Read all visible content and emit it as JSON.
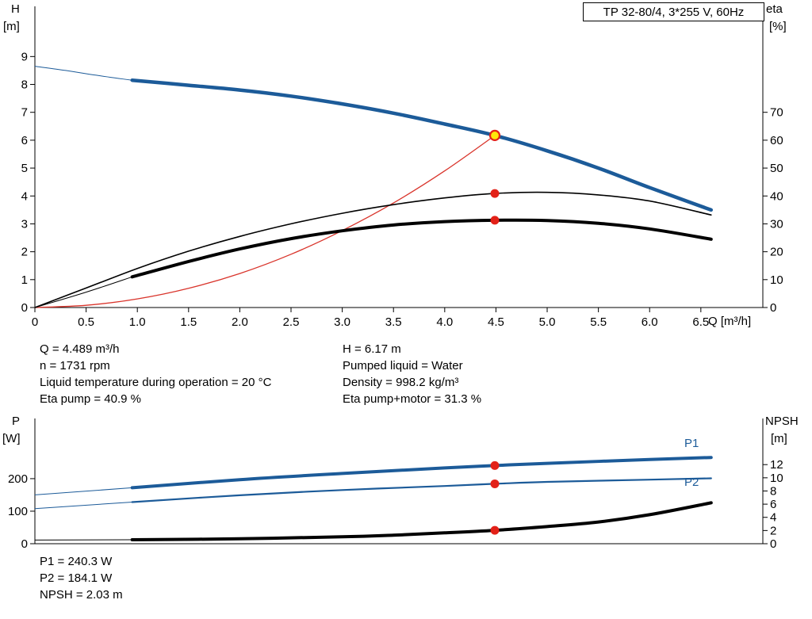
{
  "title_box": {
    "label": "TP 32-80/4, 3*255 V, 60Hz"
  },
  "colors": {
    "curve_blue": "#1c5b99",
    "curve_black": "#000000",
    "curve_red": "#d9342b",
    "marker_red": "#e32118",
    "marker_yellow": "#ffe60a",
    "axis_black": "#000000"
  },
  "info_block": {
    "left": [
      "Q = 4.489 m³/h",
      "n = 1731 rpm",
      "Liquid temperature during operation = 20 °C",
      "Eta pump = 40.9 %"
    ],
    "right": [
      "H = 6.17 m",
      "Pumped liquid = Water",
      "Density = 998.2 kg/m³",
      "Eta pump+motor = 31.3 %"
    ]
  },
  "results_block": [
    "P1 = 240.3 W",
    "P2 = 184.1 W",
    "NPSH = 2.03 m"
  ],
  "chart_data": [
    {
      "id": "head-chart",
      "type": "line",
      "title": "TP 32-80/4, 3*255 V, 60Hz",
      "x_axis": {
        "label": "Q [m³/h]",
        "ticks": [
          "0",
          "0.5",
          "1.0",
          "1.5",
          "2.0",
          "2.5",
          "3.0",
          "3.5",
          "4.0",
          "4.5",
          "5.0",
          "5.5",
          "6.0",
          "6.5"
        ],
        "tick_values": [
          0,
          0.5,
          1,
          1.5,
          2,
          2.5,
          3,
          3.5,
          4,
          4.5,
          5,
          5.5,
          6,
          6.5
        ],
        "range": [
          0,
          7.105
        ]
      },
      "y_left_axis": {
        "name": "H",
        "unit": "[m]",
        "ticks": [
          0,
          1,
          2,
          3,
          4,
          5,
          6,
          7,
          8,
          9
        ],
        "range": [
          0,
          10.8
        ]
      },
      "y_right_axis": {
        "name": "eta",
        "unit": "[%]",
        "ticks": [
          0,
          10,
          20,
          30,
          40,
          50,
          60,
          70
        ],
        "range": [
          0,
          108
        ]
      },
      "series": [
        {
          "name": "pump-head-curve",
          "axis": "left",
          "color": "blue",
          "width": 4.5,
          "x": [
            0.95,
            1.5,
            2.0,
            2.5,
            3.0,
            3.5,
            4.0,
            4.489,
            5.0,
            5.5,
            6.0,
            6.6
          ],
          "y": [
            8.15,
            7.97,
            7.8,
            7.58,
            7.3,
            6.97,
            6.58,
            6.17,
            5.62,
            5.0,
            4.3,
            3.5
          ],
          "ext_x": [
            0,
            0.3,
            0.6,
            0.95
          ],
          "ext_y": [
            8.65,
            8.5,
            8.33,
            8.15
          ]
        },
        {
          "name": "system-resulting-curve",
          "axis": "left",
          "color": "red",
          "width": 1.3,
          "x": [
            0,
            0.5,
            1.0,
            1.5,
            2.0,
            2.5,
            3.0,
            3.5,
            4.0,
            4.489
          ],
          "y": [
            0,
            0.08,
            0.31,
            0.69,
            1.22,
            1.91,
            2.76,
            3.75,
            4.9,
            6.17
          ]
        },
        {
          "name": "eta-pump-curve",
          "axis": "right",
          "color": "black",
          "width": 1.6,
          "x": [
            0,
            0.5,
            1.0,
            1.5,
            2.0,
            2.5,
            3.0,
            3.5,
            4.0,
            4.489,
            5.0,
            5.5,
            6.0,
            6.6
          ],
          "y": [
            0,
            7.0,
            14.0,
            20.2,
            25.5,
            30.0,
            33.8,
            36.9,
            39.3,
            40.9,
            41.3,
            40.4,
            38.2,
            33.2
          ]
        },
        {
          "name": "eta-pump-motor-curve",
          "axis": "right",
          "color": "black",
          "width": 4,
          "x": [
            0.95,
            1.5,
            2.0,
            2.5,
            3.0,
            3.5,
            4.0,
            4.489,
            5.0,
            5.5,
            6.0,
            6.6
          ],
          "y": [
            11.0,
            16.5,
            21.0,
            24.7,
            27.5,
            29.6,
            30.8,
            31.3,
            31.2,
            30.2,
            28.2,
            24.5
          ],
          "ext_x": [
            0,
            0.5,
            0.95
          ],
          "ext_y": [
            0,
            5.5,
            11.0
          ]
        }
      ],
      "markers": [
        {
          "name": "duty-point",
          "axis": "left",
          "x": 4.489,
          "y": 6.17,
          "style": "yellow"
        },
        {
          "name": "eta-pump-point",
          "axis": "right",
          "x": 4.489,
          "y": 40.9,
          "style": "red"
        },
        {
          "name": "eta-pump-motor-point",
          "axis": "right",
          "x": 4.489,
          "y": 31.3,
          "style": "red"
        }
      ]
    },
    {
      "id": "power-chart",
      "type": "line",
      "x_axis": {
        "label": "",
        "ticks": [],
        "tick_values": [],
        "range": [
          0,
          7.105
        ]
      },
      "y_left_axis": {
        "name": "P",
        "unit": "[W]",
        "ticks": [
          0,
          100,
          200
        ],
        "range": [
          0,
          385
        ]
      },
      "y_right_axis": {
        "name": "NPSH",
        "unit": "[m]",
        "ticks": [
          0,
          2,
          4,
          6,
          8,
          10,
          12
        ],
        "range": [
          0,
          19
        ]
      },
      "series": [
        {
          "name": "p1-power-curve",
          "label": "P1",
          "axis": "left",
          "color": "blue",
          "width": 4,
          "x": [
            0.95,
            2.0,
            3.0,
            4.0,
            4.489,
            5.0,
            6.0,
            6.6
          ],
          "y": [
            172,
            197,
            216,
            233,
            240.3,
            247,
            259,
            265
          ],
          "ext_x": [
            0,
            0.95
          ],
          "ext_y": [
            150,
            172
          ]
        },
        {
          "name": "p2-power-curve",
          "label": "P2",
          "axis": "left",
          "color": "blue",
          "width": 2.2,
          "x": [
            0.95,
            2.0,
            3.0,
            4.0,
            4.489,
            5.0,
            6.0,
            6.6
          ],
          "y": [
            128,
            149,
            165,
            177.5,
            184.1,
            190,
            197,
            201
          ],
          "ext_x": [
            0,
            0.95
          ],
          "ext_y": [
            108,
            128
          ]
        },
        {
          "name": "npsh-curve",
          "axis": "right",
          "color": "black",
          "width": 4,
          "x": [
            0.95,
            2.0,
            3.0,
            3.5,
            4.0,
            4.489,
            5.0,
            5.5,
            6.0,
            6.6
          ],
          "y": [
            0.6,
            0.75,
            1.05,
            1.3,
            1.65,
            2.03,
            2.6,
            3.3,
            4.4,
            6.2
          ],
          "ext_x": [
            0,
            0.95
          ],
          "ext_y": [
            0.55,
            0.6
          ]
        }
      ],
      "markers": [
        {
          "name": "p1-point",
          "axis": "left",
          "x": 4.489,
          "y": 240.3,
          "style": "red"
        },
        {
          "name": "p2-point",
          "axis": "left",
          "x": 4.489,
          "y": 184.1,
          "style": "red"
        },
        {
          "name": "npsh-point",
          "axis": "right",
          "x": 4.489,
          "y": 2.03,
          "style": "red"
        }
      ]
    }
  ]
}
